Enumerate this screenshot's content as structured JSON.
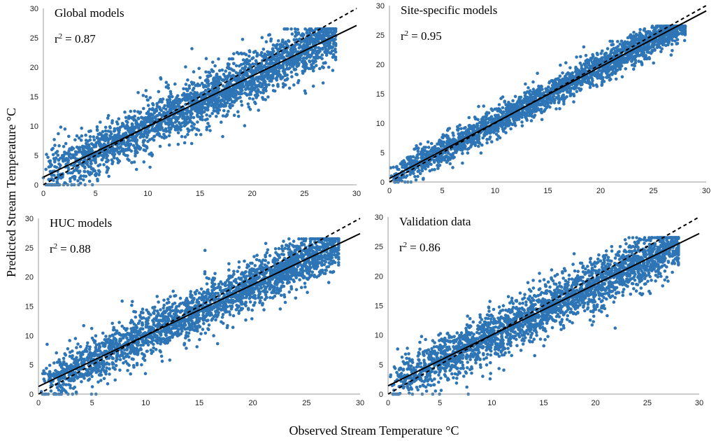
{
  "chart_data": {
    "type": "scatter",
    "xlabel": "Observed Stream Temperature °C",
    "ylabel": "Predicted Stream Temperature °C",
    "xlim": [
      0,
      30
    ],
    "ylim": [
      0,
      30
    ],
    "ticks": [
      0,
      5,
      10,
      15,
      20,
      25,
      30
    ],
    "point_color": "#2e75b6",
    "line_color": "#000000",
    "panels": [
      {
        "title": "Global models",
        "r2_label": "r",
        "r2_sup": "2",
        "r2_value": "= 0.87",
        "fit": {
          "intercept": 1.3,
          "slope": 0.86
        },
        "one_to_one": true,
        "scatter": {
          "spread": 2.8,
          "xmax": 28
        }
      },
      {
        "title": "Site-specific models",
        "r2_label": "r",
        "r2_sup": "2",
        "r2_value": "= 0.95",
        "fit": {
          "intercept": 0.6,
          "slope": 0.95
        },
        "one_to_one": true,
        "scatter": {
          "spread": 1.6,
          "xmax": 28
        }
      },
      {
        "title": "HUC models",
        "r2_label": "r",
        "r2_sup": "2",
        "r2_value": "= 0.88",
        "fit": {
          "intercept": 1.3,
          "slope": 0.87
        },
        "one_to_one": true,
        "scatter": {
          "spread": 2.6,
          "xmax": 28
        }
      },
      {
        "title": "Validation data",
        "r2_label": "r",
        "r2_sup": "2",
        "r2_value": "= 0.86",
        "fit": {
          "intercept": 1.4,
          "slope": 0.86
        },
        "one_to_one": true,
        "scatter": {
          "spread": 2.8,
          "xmax": 28
        }
      }
    ]
  }
}
